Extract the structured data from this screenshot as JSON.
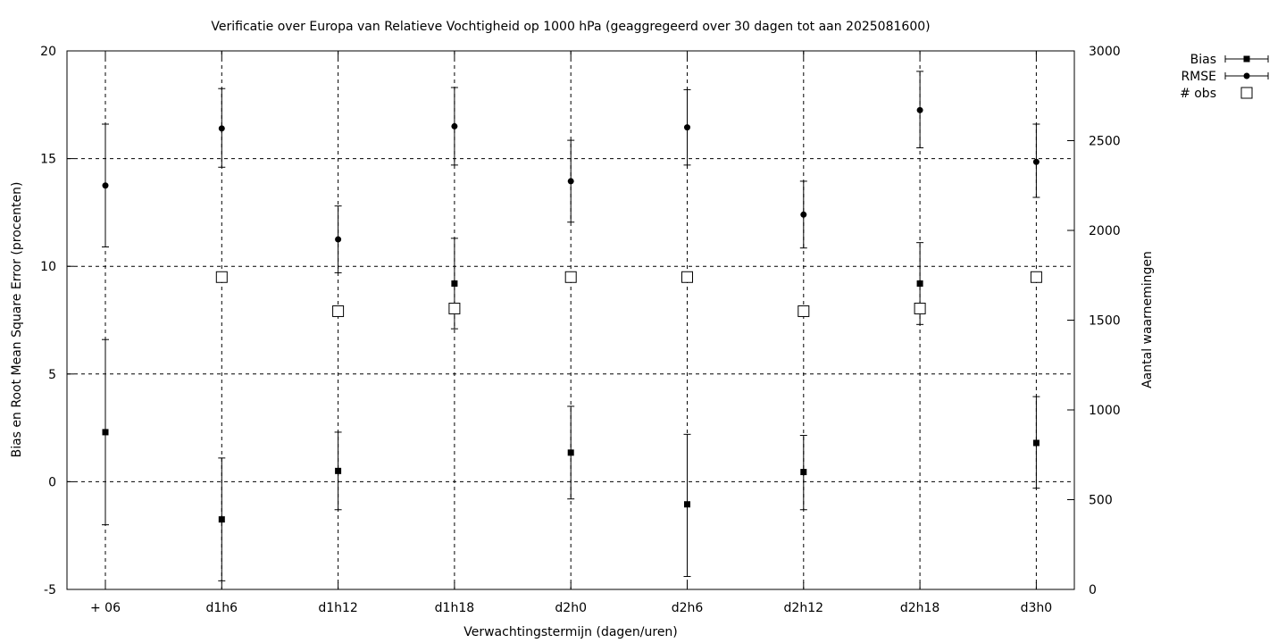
{
  "chart_data": {
    "type": "scatter",
    "title": "Verificatie over Europa van Relatieve Vochtigheid op 1000 hPa (geaggregeerd over 30 dagen tot aan 2025081600)",
    "xlabel": "Verwachtingstermijn (dagen/uren)",
    "ylabel": "Bias en Root Mean Square Error (procenten)",
    "y2label": "Aantal waarnemingen",
    "categories": [
      "+ 06",
      "d1h6",
      "d1h12",
      "d1h18",
      "d2h0",
      "d2h6",
      "d2h12",
      "d2h18",
      "d3h0"
    ],
    "ylim": [
      -5,
      20
    ],
    "yticks": [
      -5,
      0,
      5,
      10,
      15,
      20
    ],
    "y2lim": [
      0,
      3000
    ],
    "y2ticks": [
      0,
      500,
      1000,
      1500,
      2000,
      2500,
      3000
    ],
    "grid": true,
    "legend_position": "outside-top-right",
    "series": [
      {
        "name": "Bias",
        "marker": "square",
        "axis": "left",
        "values": [
          2.3,
          -1.75,
          0.5,
          9.2,
          1.35,
          -1.05,
          0.45,
          9.2,
          1.8
        ],
        "err_low": [
          -2.0,
          -4.6,
          -1.3,
          7.1,
          -0.8,
          -4.4,
          -1.3,
          7.3,
          -0.3
        ],
        "err_high": [
          6.6,
          1.1,
          2.3,
          11.3,
          3.5,
          2.2,
          2.15,
          11.1,
          3.95
        ]
      },
      {
        "name": "RMSE",
        "marker": "circle",
        "axis": "left",
        "values": [
          13.75,
          16.4,
          11.25,
          16.5,
          13.95,
          16.45,
          12.4,
          17.25,
          14.85
        ],
        "err_low": [
          10.9,
          14.6,
          9.7,
          14.7,
          12.05,
          14.7,
          10.85,
          15.5,
          13.2
        ],
        "err_high": [
          16.6,
          18.25,
          12.8,
          18.3,
          15.85,
          18.2,
          13.95,
          19.05,
          16.6
        ]
      },
      {
        "name": "# obs",
        "marker": "open-square",
        "axis": "right",
        "values": [
          null,
          1740,
          1550,
          1565,
          1740,
          1740,
          1550,
          1565,
          1740
        ]
      }
    ]
  }
}
